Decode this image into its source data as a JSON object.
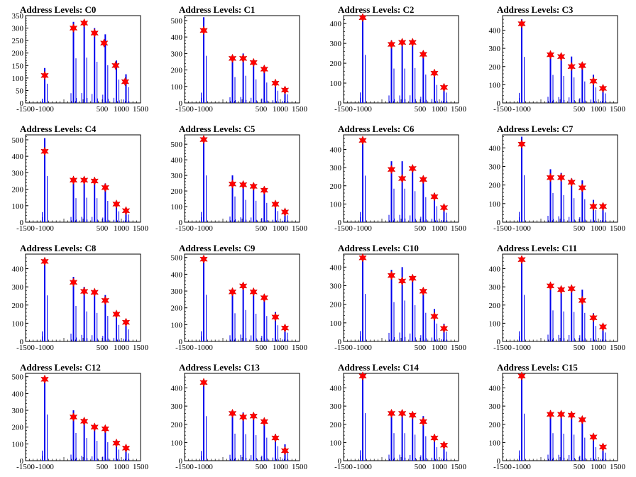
{
  "chart_data": [
    {
      "type": "bar",
      "title": "Address Levels: C0",
      "xlim": [
        -1500,
        1500
      ],
      "ylim": [
        0,
        350
      ],
      "yticks": [
        0,
        50,
        100,
        150,
        200,
        250,
        300,
        350
      ],
      "markers": [
        {
          "x": -1000,
          "y": 110
        },
        {
          "x": -250,
          "y": 300
        },
        {
          "x": 30,
          "y": 320
        },
        {
          "x": 300,
          "y": 280
        },
        {
          "x": 550,
          "y": 240
        },
        {
          "x": 850,
          "y": 150
        },
        {
          "x": 1100,
          "y": 85
        }
      ],
      "peaks": [
        {
          "x": -1000,
          "y": 140
        },
        {
          "x": -250,
          "y": 325
        },
        {
          "x": 30,
          "y": 330
        },
        {
          "x": 300,
          "y": 300
        },
        {
          "x": 580,
          "y": 275
        },
        {
          "x": 870,
          "y": 170
        },
        {
          "x": 1120,
          "y": 115
        }
      ]
    },
    {
      "type": "bar",
      "title": "Address Levels: C1",
      "xlim": [
        -1500,
        1500
      ],
      "ylim": [
        0,
        530
      ],
      "yticks": [
        0,
        100,
        200,
        300,
        400,
        500
      ],
      "markers": [
        {
          "x": -1000,
          "y": 440
        },
        {
          "x": -250,
          "y": 270
        },
        {
          "x": 30,
          "y": 270
        },
        {
          "x": 300,
          "y": 245
        },
        {
          "x": 580,
          "y": 205
        },
        {
          "x": 870,
          "y": 120
        },
        {
          "x": 1120,
          "y": 78
        }
      ],
      "peaks": [
        {
          "x": -1000,
          "y": 520
        },
        {
          "x": -250,
          "y": 285
        },
        {
          "x": 30,
          "y": 300
        },
        {
          "x": 300,
          "y": 260
        },
        {
          "x": 580,
          "y": 225
        },
        {
          "x": 870,
          "y": 135
        },
        {
          "x": 1120,
          "y": 95
        }
      ]
    },
    {
      "type": "bar",
      "title": "Address Levels: C2",
      "xlim": [
        -1500,
        1500
      ],
      "ylim": [
        0,
        440
      ],
      "yticks": [
        0,
        100,
        200,
        300,
        400
      ],
      "markers": [
        {
          "x": -1000,
          "y": 430
        },
        {
          "x": -250,
          "y": 295
        },
        {
          "x": 30,
          "y": 305
        },
        {
          "x": 300,
          "y": 305
        },
        {
          "x": 580,
          "y": 245
        },
        {
          "x": 870,
          "y": 150
        },
        {
          "x": 1120,
          "y": 78
        }
      ],
      "peaks": [
        {
          "x": -1000,
          "y": 440
        },
        {
          "x": -250,
          "y": 315
        },
        {
          "x": 30,
          "y": 315
        },
        {
          "x": 300,
          "y": 320
        },
        {
          "x": 580,
          "y": 260
        },
        {
          "x": 870,
          "y": 165
        },
        {
          "x": 1120,
          "y": 95
        }
      ]
    },
    {
      "type": "bar",
      "title": "Address Levels: C3",
      "xlim": [
        -1500,
        1500
      ],
      "ylim": [
        0,
        480
      ],
      "yticks": [
        0,
        100,
        200,
        300,
        400
      ],
      "markers": [
        {
          "x": -1000,
          "y": 435
        },
        {
          "x": -250,
          "y": 265
        },
        {
          "x": 30,
          "y": 255
        },
        {
          "x": 300,
          "y": 200
        },
        {
          "x": 580,
          "y": 205
        },
        {
          "x": 870,
          "y": 120
        },
        {
          "x": 1120,
          "y": 80
        }
      ],
      "peaks": [
        {
          "x": -1000,
          "y": 460
        },
        {
          "x": -250,
          "y": 280
        },
        {
          "x": 30,
          "y": 270
        },
        {
          "x": 300,
          "y": 255
        },
        {
          "x": 580,
          "y": 215
        },
        {
          "x": 870,
          "y": 155
        },
        {
          "x": 1120,
          "y": 95
        }
      ]
    },
    {
      "type": "bar",
      "title": "Address Levels: C4",
      "xlim": [
        -1500,
        1500
      ],
      "ylim": [
        0,
        530
      ],
      "yticks": [
        0,
        100,
        200,
        300,
        400,
        500
      ],
      "markers": [
        {
          "x": -1000,
          "y": 430
        },
        {
          "x": -250,
          "y": 255
        },
        {
          "x": 30,
          "y": 255
        },
        {
          "x": 300,
          "y": 250
        },
        {
          "x": 580,
          "y": 210
        },
        {
          "x": 870,
          "y": 110
        },
        {
          "x": 1120,
          "y": 70
        }
      ],
      "peaks": [
        {
          "x": -1000,
          "y": 510
        },
        {
          "x": -250,
          "y": 265
        },
        {
          "x": 30,
          "y": 270
        },
        {
          "x": 300,
          "y": 265
        },
        {
          "x": 580,
          "y": 235
        },
        {
          "x": 870,
          "y": 120
        },
        {
          "x": 1120,
          "y": 85
        }
      ]
    },
    {
      "type": "bar",
      "title": "Address Levels: C5",
      "xlim": [
        -1500,
        1500
      ],
      "ylim": [
        0,
        560
      ],
      "yticks": [
        0,
        100,
        200,
        300,
        400,
        500
      ],
      "markers": [
        {
          "x": -1000,
          "y": 530
        },
        {
          "x": -250,
          "y": 245
        },
        {
          "x": 30,
          "y": 240
        },
        {
          "x": 300,
          "y": 230
        },
        {
          "x": 580,
          "y": 205
        },
        {
          "x": 870,
          "y": 115
        },
        {
          "x": 1120,
          "y": 65
        }
      ],
      "peaks": [
        {
          "x": -1000,
          "y": 545
        },
        {
          "x": -250,
          "y": 300
        },
        {
          "x": 30,
          "y": 260
        },
        {
          "x": 300,
          "y": 250
        },
        {
          "x": 580,
          "y": 225
        },
        {
          "x": 870,
          "y": 130
        },
        {
          "x": 1120,
          "y": 80
        }
      ]
    },
    {
      "type": "bar",
      "title": "Address Levels: C6",
      "xlim": [
        -1500,
        1500
      ],
      "ylim": [
        0,
        480
      ],
      "yticks": [
        0,
        100,
        200,
        300,
        400
      ],
      "markers": [
        {
          "x": -1000,
          "y": 450
        },
        {
          "x": -250,
          "y": 290
        },
        {
          "x": 30,
          "y": 240
        },
        {
          "x": 300,
          "y": 295
        },
        {
          "x": 580,
          "y": 235
        },
        {
          "x": 870,
          "y": 140
        },
        {
          "x": 1120,
          "y": 80
        }
      ],
      "peaks": [
        {
          "x": -1000,
          "y": 465
        },
        {
          "x": -250,
          "y": 335
        },
        {
          "x": 30,
          "y": 335
        },
        {
          "x": 300,
          "y": 310
        },
        {
          "x": 580,
          "y": 250
        },
        {
          "x": 870,
          "y": 160
        },
        {
          "x": 1120,
          "y": 95
        }
      ]
    },
    {
      "type": "bar",
      "title": "Address Levels: C7",
      "xlim": [
        -1500,
        1500
      ],
      "ylim": [
        0,
        470
      ],
      "yticks": [
        0,
        100,
        200,
        300,
        400
      ],
      "markers": [
        {
          "x": -1000,
          "y": 420
        },
        {
          "x": -250,
          "y": 240
        },
        {
          "x": 30,
          "y": 240
        },
        {
          "x": 300,
          "y": 215
        },
        {
          "x": 580,
          "y": 185
        },
        {
          "x": 870,
          "y": 85
        },
        {
          "x": 1120,
          "y": 85
        }
      ],
      "peaks": [
        {
          "x": -1000,
          "y": 460
        },
        {
          "x": -250,
          "y": 285
        },
        {
          "x": 30,
          "y": 265
        },
        {
          "x": 300,
          "y": 235
        },
        {
          "x": 580,
          "y": 225
        },
        {
          "x": 870,
          "y": 120
        },
        {
          "x": 1120,
          "y": 95
        }
      ]
    },
    {
      "type": "bar",
      "title": "Address Levels: C8",
      "xlim": [
        -1500,
        1500
      ],
      "ylim": [
        0,
        480
      ],
      "yticks": [
        0,
        100,
        200,
        300,
        400
      ],
      "markers": [
        {
          "x": -1000,
          "y": 440
        },
        {
          "x": -250,
          "y": 325
        },
        {
          "x": 30,
          "y": 275
        },
        {
          "x": 300,
          "y": 270
        },
        {
          "x": 580,
          "y": 225
        },
        {
          "x": 870,
          "y": 150
        },
        {
          "x": 1120,
          "y": 105
        }
      ],
      "peaks": [
        {
          "x": -1000,
          "y": 460
        },
        {
          "x": -250,
          "y": 355
        },
        {
          "x": 30,
          "y": 300
        },
        {
          "x": 300,
          "y": 285
        },
        {
          "x": 580,
          "y": 255
        },
        {
          "x": 870,
          "y": 165
        },
        {
          "x": 1120,
          "y": 120
        }
      ]
    },
    {
      "type": "bar",
      "title": "Address Levels: C9",
      "xlim": [
        -1500,
        1500
      ],
      "ylim": [
        0,
        520
      ],
      "yticks": [
        0,
        100,
        200,
        300,
        400,
        500
      ],
      "markers": [
        {
          "x": -1000,
          "y": 490
        },
        {
          "x": -250,
          "y": 295
        },
        {
          "x": 30,
          "y": 330
        },
        {
          "x": 300,
          "y": 295
        },
        {
          "x": 580,
          "y": 260
        },
        {
          "x": 870,
          "y": 145
        },
        {
          "x": 1120,
          "y": 80
        }
      ],
      "peaks": [
        {
          "x": -1000,
          "y": 505
        },
        {
          "x": -250,
          "y": 305
        },
        {
          "x": 30,
          "y": 340
        },
        {
          "x": 300,
          "y": 300
        },
        {
          "x": 580,
          "y": 275
        },
        {
          "x": 870,
          "y": 175
        },
        {
          "x": 1120,
          "y": 95
        }
      ]
    },
    {
      "type": "bar",
      "title": "Address Levels: C10",
      "xlim": [
        -1500,
        1500
      ],
      "ylim": [
        0,
        470
      ],
      "yticks": [
        0,
        100,
        200,
        300,
        400
      ],
      "markers": [
        {
          "x": -1000,
          "y": 450
        },
        {
          "x": -250,
          "y": 355
        },
        {
          "x": 30,
          "y": 325
        },
        {
          "x": 300,
          "y": 340
        },
        {
          "x": 580,
          "y": 270
        },
        {
          "x": 870,
          "y": 135
        },
        {
          "x": 1120,
          "y": 70
        }
      ],
      "peaks": [
        {
          "x": -1000,
          "y": 465
        },
        {
          "x": -250,
          "y": 385
        },
        {
          "x": 30,
          "y": 400
        },
        {
          "x": 300,
          "y": 355
        },
        {
          "x": 580,
          "y": 280
        },
        {
          "x": 870,
          "y": 175
        },
        {
          "x": 1120,
          "y": 95
        }
      ]
    },
    {
      "type": "bar",
      "title": "Address Levels: C11",
      "xlim": [
        -1500,
        1500
      ],
      "ylim": [
        0,
        480
      ],
      "yticks": [
        0,
        100,
        200,
        300,
        400
      ],
      "markers": [
        {
          "x": -1000,
          "y": 450
        },
        {
          "x": -250,
          "y": 305
        },
        {
          "x": 30,
          "y": 285
        },
        {
          "x": 300,
          "y": 290
        },
        {
          "x": 580,
          "y": 225
        },
        {
          "x": 870,
          "y": 130
        },
        {
          "x": 1120,
          "y": 80
        }
      ],
      "peaks": [
        {
          "x": -1000,
          "y": 465
        },
        {
          "x": -250,
          "y": 310
        },
        {
          "x": 30,
          "y": 300
        },
        {
          "x": 300,
          "y": 295
        },
        {
          "x": 580,
          "y": 285
        },
        {
          "x": 870,
          "y": 155
        },
        {
          "x": 1120,
          "y": 90
        }
      ]
    },
    {
      "type": "bar",
      "title": "Address Levels: C12",
      "xlim": [
        -1500,
        1500
      ],
      "ylim": [
        0,
        520
      ],
      "yticks": [
        0,
        100,
        200,
        300,
        400,
        500
      ],
      "markers": [
        {
          "x": -1000,
          "y": 485
        },
        {
          "x": -250,
          "y": 260
        },
        {
          "x": 30,
          "y": 235
        },
        {
          "x": 300,
          "y": 200
        },
        {
          "x": 580,
          "y": 190
        },
        {
          "x": 870,
          "y": 105
        },
        {
          "x": 1120,
          "y": 75
        }
      ],
      "peaks": [
        {
          "x": -1000,
          "y": 500
        },
        {
          "x": -250,
          "y": 300
        },
        {
          "x": 30,
          "y": 245
        },
        {
          "x": 300,
          "y": 215
        },
        {
          "x": 580,
          "y": 200
        },
        {
          "x": 870,
          "y": 120
        },
        {
          "x": 1120,
          "y": 80
        }
      ]
    },
    {
      "type": "bar",
      "title": "Address Levels: C13",
      "xlim": [
        -1500,
        1500
      ],
      "ylim": [
        0,
        480
      ],
      "yticks": [
        0,
        100,
        200,
        300,
        400
      ],
      "markers": [
        {
          "x": -1000,
          "y": 430
        },
        {
          "x": -250,
          "y": 260
        },
        {
          "x": 30,
          "y": 240
        },
        {
          "x": 300,
          "y": 245
        },
        {
          "x": 580,
          "y": 215
        },
        {
          "x": 870,
          "y": 125
        },
        {
          "x": 1120,
          "y": 55
        }
      ],
      "peaks": [
        {
          "x": -1000,
          "y": 445
        },
        {
          "x": -250,
          "y": 270
        },
        {
          "x": 30,
          "y": 265
        },
        {
          "x": 300,
          "y": 255
        },
        {
          "x": 580,
          "y": 230
        },
        {
          "x": 870,
          "y": 145
        },
        {
          "x": 1120,
          "y": 90
        }
      ]
    },
    {
      "type": "bar",
      "title": "Address Levels: C14",
      "xlim": [
        -1500,
        1500
      ],
      "ylim": [
        0,
        480
      ],
      "yticks": [
        0,
        100,
        200,
        300,
        400
      ],
      "markers": [
        {
          "x": -1000,
          "y": 465
        },
        {
          "x": -250,
          "y": 260
        },
        {
          "x": 30,
          "y": 260
        },
        {
          "x": 300,
          "y": 250
        },
        {
          "x": 580,
          "y": 215
        },
        {
          "x": 870,
          "y": 125
        },
        {
          "x": 1120,
          "y": 85
        }
      ],
      "peaks": [
        {
          "x": -1000,
          "y": 475
        },
        {
          "x": -250,
          "y": 275
        },
        {
          "x": 30,
          "y": 275
        },
        {
          "x": 300,
          "y": 260
        },
        {
          "x": 580,
          "y": 245
        },
        {
          "x": 870,
          "y": 135
        },
        {
          "x": 1120,
          "y": 90
        }
      ]
    },
    {
      "type": "bar",
      "title": "Address Levels: C15",
      "xlim": [
        -1500,
        1500
      ],
      "ylim": [
        0,
        480
      ],
      "yticks": [
        0,
        100,
        200,
        300,
        400
      ],
      "markers": [
        {
          "x": -1000,
          "y": 465
        },
        {
          "x": -250,
          "y": 255
        },
        {
          "x": 30,
          "y": 255
        },
        {
          "x": 300,
          "y": 250
        },
        {
          "x": 580,
          "y": 225
        },
        {
          "x": 870,
          "y": 130
        },
        {
          "x": 1120,
          "y": 75
        }
      ],
      "peaks": [
        {
          "x": -1000,
          "y": 470
        },
        {
          "x": -250,
          "y": 275
        },
        {
          "x": 30,
          "y": 270
        },
        {
          "x": 300,
          "y": 260
        },
        {
          "x": 580,
          "y": 230
        },
        {
          "x": 870,
          "y": 135
        },
        {
          "x": 1120,
          "y": 80
        }
      ]
    }
  ],
  "xticks": [
    "-1500",
    "-1000",
    "500",
    "1000",
    "1500"
  ],
  "xtick_values": [
    -1500,
    -1000,
    500,
    1000,
    1500
  ],
  "colors": {
    "bars": "#0000ee",
    "markers": "#ff0000",
    "axes": "#000000"
  }
}
